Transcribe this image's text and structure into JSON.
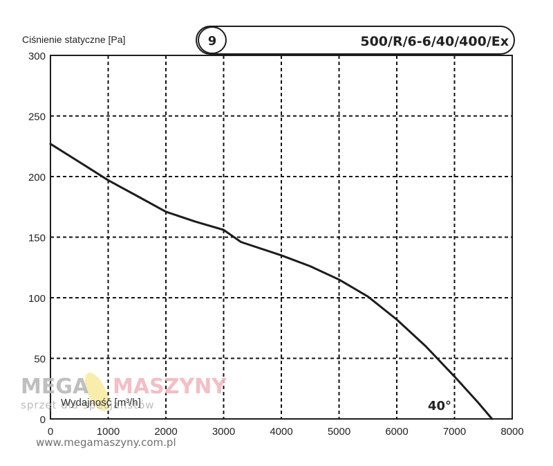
{
  "chart_data": {
    "type": "line",
    "ylabel": "Ciśnienie statyczne [Pa]",
    "xlabel": "Wydajność [m³/h]",
    "curve_number": "9",
    "model": "500/R/6-6/40/400/Ex",
    "curve_annotation": "40°",
    "xlim": [
      0,
      8000
    ],
    "ylim": [
      0,
      300
    ],
    "x_ticks": [
      "0",
      "1000",
      "2000",
      "3000",
      "4000",
      "5000",
      "6000",
      "7000",
      "8000"
    ],
    "y_ticks": [
      "0",
      "50",
      "100",
      "150",
      "200",
      "250",
      "300"
    ],
    "grid": true,
    "series": [
      {
        "x": [
          0,
          500,
          1000,
          1500,
          2000,
          2500,
          3000,
          3300,
          4000,
          4500,
          5000,
          5500,
          6000,
          6500,
          7000,
          7400,
          7650
        ],
        "values": [
          227,
          212,
          197,
          184,
          171,
          163,
          156,
          146,
          135,
          126,
          115,
          101,
          82,
          60,
          35,
          14,
          0
        ]
      }
    ]
  },
  "watermark": {
    "brand_a": "MEGA",
    "brand_b": "MASZYNY",
    "tagline": "sprzęt dla specjalistów",
    "url": "www.megamaszyny.com.pl"
  },
  "colors": {
    "curve": "#1c1c1c",
    "grid": "#111111",
    "watermark_gray": "#b9b9b9",
    "watermark_pink": "#f2b8bf",
    "watermark_yellow": "#f6e27a"
  }
}
